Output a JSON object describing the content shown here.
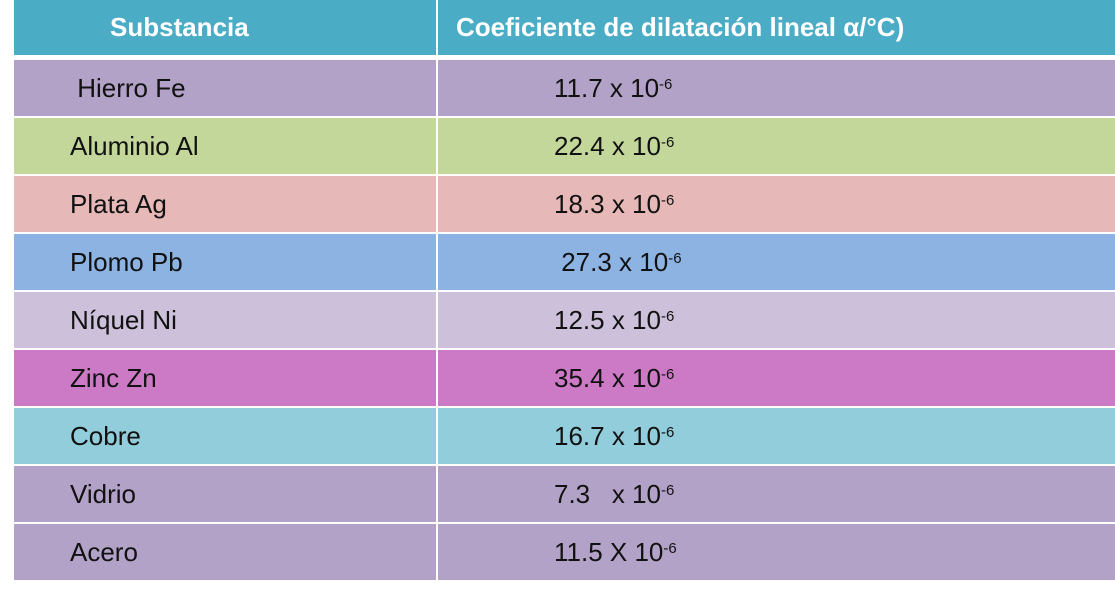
{
  "table": {
    "headers": [
      "Substancia",
      "Coeficiente de dilatación lineal  α/°C)"
    ],
    "header_color": "#4bacc6",
    "rows": [
      {
        "substance": " Hierro Fe",
        "coef": "11.7 x 10",
        "exp": "-6",
        "color": "#b3a2c7",
        "indent": 0
      },
      {
        "substance": "Aluminio Al",
        "coef": "22.4 x 10",
        "exp": "-6",
        "color": "#c4d79b",
        "indent": 0
      },
      {
        "substance": "Plata Ag",
        "coef": "18.3 x 10",
        "exp": "-6",
        "color": "#e6b9b8",
        "indent": 0
      },
      {
        "substance": "Plomo Pb",
        "coef": " 27.3 x 10",
        "exp": "-6",
        "color": "#8db3e2",
        "indent": 0
      },
      {
        "substance": "Níquel Ni",
        "coef": "12.5 x 10",
        "exp": "-6",
        "color": "#ccc0da",
        "indent": 0
      },
      {
        "substance": "Zinc Zn",
        "coef": "35.4 x 10",
        "exp": "-6",
        "color": "#cc7ac5",
        "indent": 0
      },
      {
        "substance": "Cobre",
        "coef": "16.7 x 10",
        "exp": "-6",
        "color": "#92cddc",
        "indent": 0
      },
      {
        "substance": "Vidrio",
        "coef": "7.3   x 10",
        "exp": "-6",
        "color": "#b3a2c7",
        "indent": 0
      },
      {
        "substance": "Acero",
        "coef": "11.5 X 10",
        "exp": "-6",
        "color": "#b3a2c7",
        "indent": 0
      }
    ]
  }
}
